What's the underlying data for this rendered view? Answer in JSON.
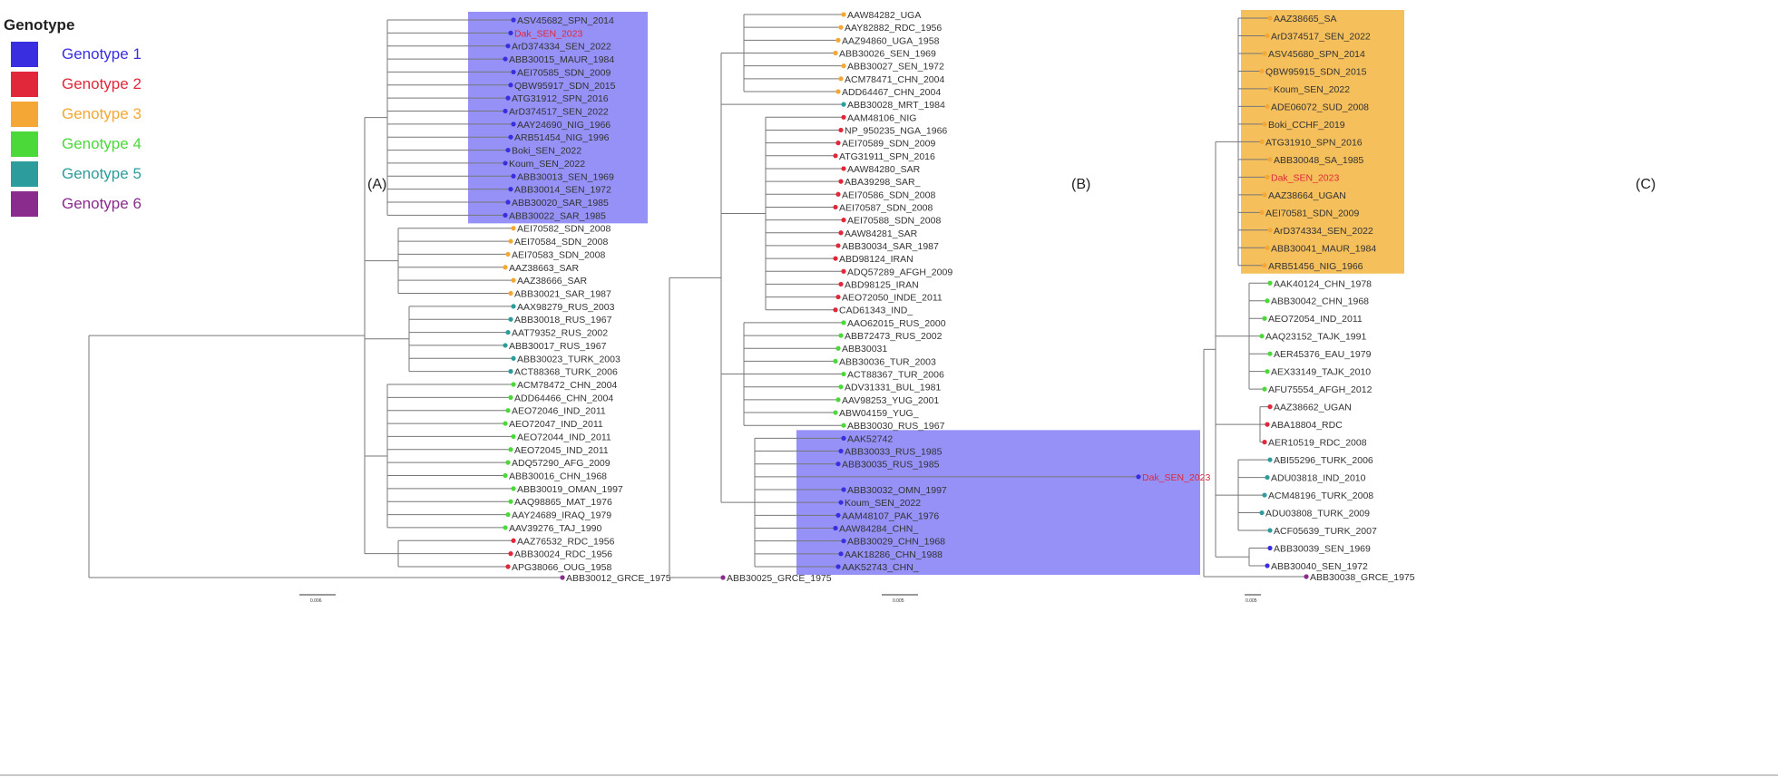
{
  "legend": {
    "title": "Genotype",
    "items": [
      {
        "label": "Genotype 1",
        "color": "#3a2fe0"
      },
      {
        "label": "Genotype 2",
        "color": "#e0283a"
      },
      {
        "label": "Genotype 3",
        "color": "#f4a734"
      },
      {
        "label": "Genotype 4",
        "color": "#4bd93a"
      },
      {
        "label": "Genotype 5",
        "color": "#2d9c9c"
      },
      {
        "label": "Genotype 6",
        "color": "#8a2b8e"
      }
    ]
  },
  "panels": [
    {
      "id": "A",
      "label": "(A)",
      "scale_label": "0.006",
      "taxa": [
        {
          "name": "ASV45682_SPN_2014",
          "genotype": 1
        },
        {
          "name": "Dak_SEN_2023",
          "genotype": 1,
          "highlight": true
        },
        {
          "name": "ArD374334_SEN_2022",
          "genotype": 1
        },
        {
          "name": "ABB30015_MAUR_1984",
          "genotype": 1
        },
        {
          "name": "AEI70585_SDN_2009",
          "genotype": 1
        },
        {
          "name": "QBW95917_SDN_2015",
          "genotype": 1
        },
        {
          "name": "ATG31912_SPN_2016",
          "genotype": 1
        },
        {
          "name": "ArD374517_SEN_2022",
          "genotype": 1
        },
        {
          "name": "AAY24690_NIG_1966",
          "genotype": 1
        },
        {
          "name": "ARB51454_NIG_1996",
          "genotype": 1
        },
        {
          "name": "Boki_SEN_2022",
          "genotype": 1
        },
        {
          "name": "Koum_SEN_2022",
          "genotype": 1
        },
        {
          "name": "ABB30013_SEN_1969",
          "genotype": 1
        },
        {
          "name": "ABB30014_SEN_1972",
          "genotype": 1
        },
        {
          "name": "ABB30020_SAR_1985",
          "genotype": 1
        },
        {
          "name": "ABB30022_SAR_1985",
          "genotype": 1
        },
        {
          "name": "AEI70582_SDN_2008",
          "genotype": 3
        },
        {
          "name": "AEI70584_SDN_2008",
          "genotype": 3
        },
        {
          "name": "AEI70583_SDN_2008",
          "genotype": 3
        },
        {
          "name": "AAZ38663_SAR",
          "genotype": 3
        },
        {
          "name": "AAZ38666_SAR",
          "genotype": 3
        },
        {
          "name": "ABB30021_SAR_1987",
          "genotype": 3
        },
        {
          "name": "AAX98279_RUS_2003",
          "genotype": 5
        },
        {
          "name": "ABB30018_RUS_1967",
          "genotype": 5
        },
        {
          "name": "AAT79352_RUS_2002",
          "genotype": 5
        },
        {
          "name": "ABB30017_RUS_1967",
          "genotype": 5
        },
        {
          "name": "ABB30023_TURK_2003",
          "genotype": 5
        },
        {
          "name": "ACT88368_TURK_2006",
          "genotype": 5
        },
        {
          "name": "ACM78472_CHN_2004",
          "genotype": 4
        },
        {
          "name": "ADD64466_CHN_2004",
          "genotype": 4
        },
        {
          "name": "AEO72046_IND_2011",
          "genotype": 4
        },
        {
          "name": "AEO72047_IND_2011",
          "genotype": 4
        },
        {
          "name": "AEO72044_IND_2011",
          "genotype": 4
        },
        {
          "name": "AEO72045_IND_2011",
          "genotype": 4
        },
        {
          "name": "ADQ57290_AFG_2009",
          "genotype": 4
        },
        {
          "name": "ABB30016_CHN_1968",
          "genotype": 4
        },
        {
          "name": "ABB30019_OMAN_1997",
          "genotype": 4
        },
        {
          "name": "AAQ98865_MAT_1976",
          "genotype": 4
        },
        {
          "name": "AAY24689_IRAQ_1979",
          "genotype": 4
        },
        {
          "name": "AAV39276_TAJ_1990",
          "genotype": 4
        },
        {
          "name": "AAZ76532_RDC_1956",
          "genotype": 2
        },
        {
          "name": "ABB30024_RDC_1956",
          "genotype": 2
        },
        {
          "name": "APG38066_OUG_1958",
          "genotype": 2
        },
        {
          "name": "ABB30012_GRCE_1975",
          "genotype": 6,
          "outgroup": true
        }
      ]
    },
    {
      "id": "B",
      "label": "(B)",
      "scale_label": "0.005",
      "taxa": [
        {
          "name": "AAW84282_UGA",
          "genotype": 3
        },
        {
          "name": "AAY82882_RDC_1956",
          "genotype": 3
        },
        {
          "name": "AAZ94860_UGA_1958",
          "genotype": 3
        },
        {
          "name": "ABB30026_SEN_1969",
          "genotype": 3
        },
        {
          "name": "ABB30027_SEN_1972",
          "genotype": 3
        },
        {
          "name": "ACM78471_CHN_2004",
          "genotype": 3
        },
        {
          "name": "ADD64467_CHN_2004",
          "genotype": 3
        },
        {
          "name": "ABB30028_MRT_1984",
          "genotype": 5
        },
        {
          "name": "AAM48106_NIG",
          "genotype": 2
        },
        {
          "name": "NP_950235_NGA_1966",
          "genotype": 2
        },
        {
          "name": "AEI70589_SDN_2009",
          "genotype": 2
        },
        {
          "name": "ATG31911_SPN_2016",
          "genotype": 2
        },
        {
          "name": "AAW84280_SAR",
          "genotype": 2
        },
        {
          "name": "ABA39298_SAR_",
          "genotype": 2
        },
        {
          "name": "AEI70586_SDN_2008",
          "genotype": 2
        },
        {
          "name": "AEI70587_SDN_2008",
          "genotype": 2
        },
        {
          "name": "AEI70588_SDN_2008",
          "genotype": 2
        },
        {
          "name": "AAW84281_SAR",
          "genotype": 2
        },
        {
          "name": "ABB30034_SAR_1987",
          "genotype": 2
        },
        {
          "name": "ABD98124_IRAN",
          "genotype": 2
        },
        {
          "name": "ADQ57289_AFGH_2009",
          "genotype": 2
        },
        {
          "name": "ABD98125_IRAN",
          "genotype": 2
        },
        {
          "name": "AEO72050_INDE_2011",
          "genotype": 2
        },
        {
          "name": "CAD61343_IND_",
          "genotype": 2
        },
        {
          "name": "AAO62015_RUS_2000",
          "genotype": 4
        },
        {
          "name": "ABB72473_RUS_2002",
          "genotype": 4
        },
        {
          "name": "ABB30031",
          "genotype": 4
        },
        {
          "name": "ABB30036_TUR_2003",
          "genotype": 4
        },
        {
          "name": "ACT88367_TUR_2006",
          "genotype": 4
        },
        {
          "name": "ADV31331_BUL_1981",
          "genotype": 4
        },
        {
          "name": "AAV98253_YUG_2001",
          "genotype": 4
        },
        {
          "name": "ABW04159_YUG_",
          "genotype": 4
        },
        {
          "name": "ABB30030_RUS_1967",
          "genotype": 4
        },
        {
          "name": "AAK52742",
          "genotype": 1
        },
        {
          "name": "ABB30033_RUS_1985",
          "genotype": 1
        },
        {
          "name": "ABB30035_RUS_1985",
          "genotype": 1
        },
        {
          "name": "Dak_SEN_2023",
          "genotype": 1,
          "highlight": true
        },
        {
          "name": "ABB30032_OMN_1997",
          "genotype": 1
        },
        {
          "name": "Koum_SEN_2022",
          "genotype": 1
        },
        {
          "name": "AAM48107_PAK_1976",
          "genotype": 1
        },
        {
          "name": "AAW84284_CHN_",
          "genotype": 1
        },
        {
          "name": "ABB30029_CHN_1968",
          "genotype": 1
        },
        {
          "name": "AAK18286_CHN_1988",
          "genotype": 1
        },
        {
          "name": "AAK52743_CHN_",
          "genotype": 1
        },
        {
          "name": "ABB30025_GRCE_1975",
          "genotype": 6,
          "outgroup": true
        }
      ]
    },
    {
      "id": "C",
      "label": "(C)",
      "scale_label": "0.005",
      "taxa": [
        {
          "name": "AAZ38665_SA",
          "genotype": 3
        },
        {
          "name": "ArD374517_SEN_2022",
          "genotype": 3
        },
        {
          "name": "ASV45680_SPN_2014",
          "genotype": 3
        },
        {
          "name": "QBW95915_SDN_2015",
          "genotype": 3
        },
        {
          "name": "Koum_SEN_2022",
          "genotype": 3
        },
        {
          "name": "ADE06072_SUD_2008",
          "genotype": 3
        },
        {
          "name": "Boki_CCHF_2019",
          "genotype": 3
        },
        {
          "name": "ATG31910_SPN_2016",
          "genotype": 3
        },
        {
          "name": "ABB30048_SA_1985",
          "genotype": 3
        },
        {
          "name": "Dak_SEN_2023",
          "genotype": 3,
          "highlight": true
        },
        {
          "name": "AAZ38664_UGAN",
          "genotype": 3
        },
        {
          "name": "AEI70581_SDN_2009",
          "genotype": 3
        },
        {
          "name": "ArD374334_SEN_2022",
          "genotype": 3
        },
        {
          "name": "ABB30041_MAUR_1984",
          "genotype": 3
        },
        {
          "name": "ARB51456_NIG_1966",
          "genotype": 3
        },
        {
          "name": "AAK40124_CHN_1978",
          "genotype": 4
        },
        {
          "name": "ABB30042_CHN_1968",
          "genotype": 4
        },
        {
          "name": "AEO72054_IND_2011",
          "genotype": 4
        },
        {
          "name": "AAQ23152_TAJK_1991",
          "genotype": 4
        },
        {
          "name": "AER45376_EAU_1979",
          "genotype": 4
        },
        {
          "name": "AEX33149_TAJK_2010",
          "genotype": 4
        },
        {
          "name": "AFU75554_AFGH_2012",
          "genotype": 4
        },
        {
          "name": "AAZ38662_UGAN",
          "genotype": 2
        },
        {
          "name": "ABA18804_RDC",
          "genotype": 2
        },
        {
          "name": "AER10519_RDC_2008",
          "genotype": 2
        },
        {
          "name": "ABI55296_TURK_2006",
          "genotype": 5
        },
        {
          "name": "ADU03818_IND_2010",
          "genotype": 5
        },
        {
          "name": "ACM48196_TURK_2008",
          "genotype": 5
        },
        {
          "name": "ADU03808_TURK_2009",
          "genotype": 5
        },
        {
          "name": "ACF05639_TURK_2007",
          "genotype": 5
        },
        {
          "name": "ABB30039_SEN_1969",
          "genotype": 1
        },
        {
          "name": "ABB30040_SEN_1972",
          "genotype": 1
        },
        {
          "name": "ABB30038_GRCE_1975",
          "genotype": 6,
          "outgroup": true
        }
      ]
    }
  ]
}
